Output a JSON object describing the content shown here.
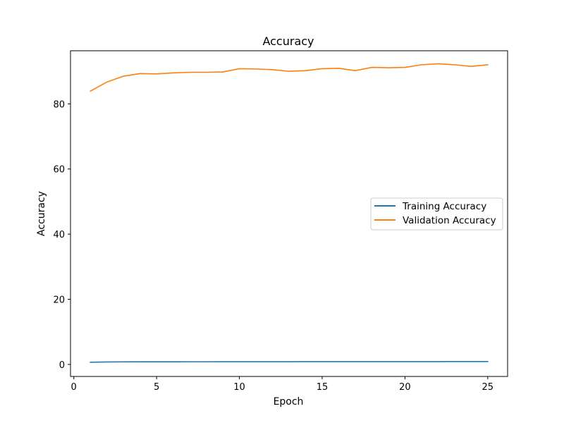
{
  "chart_data": {
    "type": "line",
    "title": "Accuracy",
    "xlabel": "Epoch",
    "ylabel": "Accuracy",
    "xlim": [
      -0.2,
      26.2
    ],
    "ylim": [
      -3.7,
      96.3
    ],
    "xticks": [
      0,
      5,
      10,
      15,
      20,
      25
    ],
    "yticks": [
      0,
      20,
      40,
      60,
      80
    ],
    "grid": false,
    "legend_position": "center-right",
    "x": [
      1,
      2,
      3,
      4,
      5,
      6,
      7,
      8,
      9,
      10,
      11,
      12,
      13,
      14,
      15,
      16,
      17,
      18,
      19,
      20,
      21,
      22,
      23,
      24,
      25
    ],
    "series": [
      {
        "name": "Training Accuracy",
        "color": "#1f77b4",
        "values": [
          0.68,
          0.76,
          0.79,
          0.8,
          0.81,
          0.81,
          0.82,
          0.82,
          0.83,
          0.83,
          0.84,
          0.84,
          0.84,
          0.85,
          0.85,
          0.85,
          0.86,
          0.86,
          0.86,
          0.87,
          0.87,
          0.87,
          0.88,
          0.88,
          0.88
        ]
      },
      {
        "name": "Validation Accuracy",
        "color": "#ff7f0e",
        "values": [
          83.9,
          86.7,
          88.5,
          89.3,
          89.2,
          89.5,
          89.7,
          89.7,
          89.8,
          90.8,
          90.7,
          90.5,
          90.0,
          90.2,
          90.8,
          90.9,
          90.2,
          91.2,
          91.1,
          91.2,
          92.0,
          92.3,
          92.0,
          91.5,
          92.0
        ]
      }
    ]
  }
}
